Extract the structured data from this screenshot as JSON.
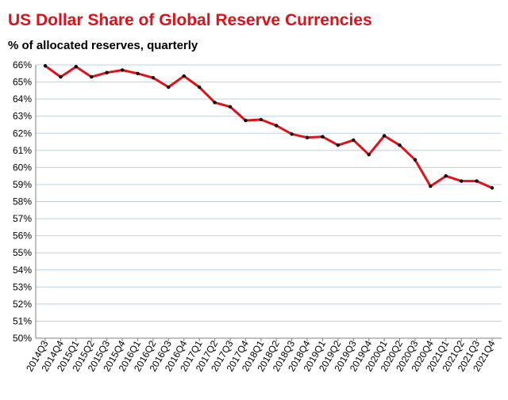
{
  "chart_data": {
    "type": "line",
    "title": "US Dollar Share of Global Reserve Currencies",
    "subtitle": "% of allocated reserves, quarterly",
    "xlabel": "",
    "ylabel": "",
    "ylim": [
      50,
      66
    ],
    "ytick_step": 1,
    "ytick_suffix": "%",
    "grid": true,
    "legend": "none",
    "line_color": "#e3101a",
    "marker_color": "#000000",
    "grid_color": "#bcd0e4",
    "categories": [
      "2014Q3",
      "2014Q4",
      "2015Q1",
      "2015Q2",
      "2015Q3",
      "2015Q4",
      "2016Q1",
      "2016Q2",
      "2016Q3",
      "2016Q4",
      "2017Q1",
      "2017Q2",
      "2017Q3",
      "2017Q4",
      "2018Q1",
      "2018Q2",
      "2018Q3",
      "2018Q4",
      "2019Q1",
      "2019Q2",
      "2019Q3",
      "2019Q4",
      "2020Q1",
      "2020Q2",
      "2020Q3",
      "2020Q4",
      "2021Q1",
      "2021Q2",
      "2021Q3",
      "2021Q4"
    ],
    "series": [
      {
        "name": "US Dollar share",
        "values": [
          65.95,
          65.3,
          65.9,
          65.3,
          65.55,
          65.7,
          65.5,
          65.25,
          64.7,
          65.35,
          64.7,
          63.8,
          63.55,
          62.75,
          62.8,
          62.45,
          61.95,
          61.75,
          61.8,
          61.3,
          61.6,
          60.75,
          61.85,
          61.3,
          60.45,
          58.9,
          59.5,
          59.2,
          59.2,
          58.8
        ]
      }
    ]
  }
}
